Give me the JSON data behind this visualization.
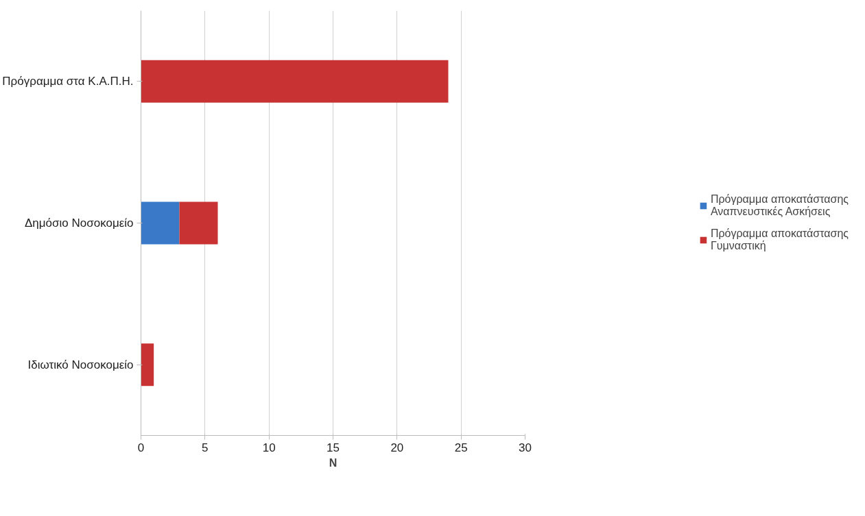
{
  "chart_data": {
    "type": "bar",
    "orientation": "horizontal",
    "stacked": true,
    "categories": [
      "Πρόγραμμα στα Κ.Α.Π.Η.",
      "Δημόσιο Νοσοκομείο",
      "Ιδιωτικό Νοσοκομείο"
    ],
    "series": [
      {
        "name": "Πρόγραμμα αποκατάστασης Αναπνευστικές Ασκήσεις",
        "color": "#3a78c8",
        "values": [
          0,
          3,
          0
        ]
      },
      {
        "name": "Πρόγραμμα αποκατάστασης Γυμναστική",
        "color": "#c83232",
        "values": [
          24,
          3,
          1
        ]
      }
    ],
    "xlim": [
      0,
      30
    ],
    "xticks": [
      0,
      5,
      10,
      15,
      20,
      25,
      30
    ],
    "xlabel": "N",
    "grid": "x",
    "legend": "right"
  }
}
